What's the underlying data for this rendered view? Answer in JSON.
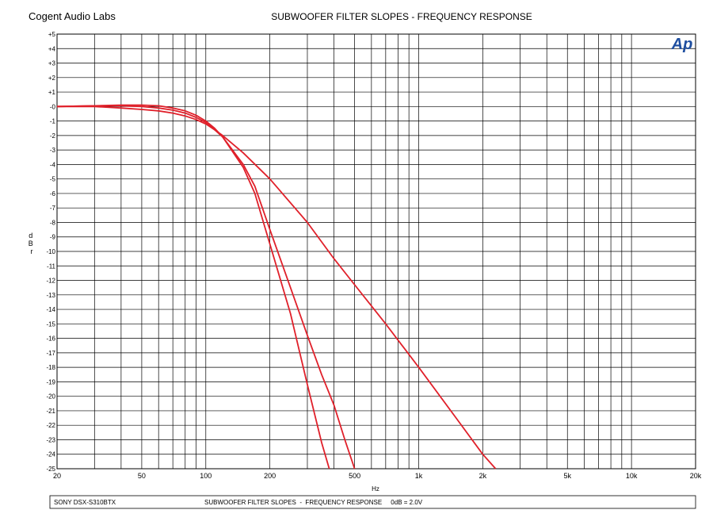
{
  "header": {
    "company": "Cogent Audio Labs",
    "title": "SUBWOOFER FILTER SLOPES - FREQUENCY RESPONSE"
  },
  "footer": {
    "device": "SONY DSX-S310BTX",
    "caption": "SUBWOOFER FILTER SLOPES  -  FREQUENCY RESPONSE     0dB = 2.0V"
  },
  "logo": {
    "text": "Ap",
    "color": "#1f4fa0"
  },
  "colors": {
    "trace": "#e0202a",
    "grid": "#000000"
  },
  "chart_data": {
    "type": "line",
    "title": "SUBWOOFER FILTER SLOPES - FREQUENCY RESPONSE",
    "xlabel": "Hz",
    "ylabel": "dBr",
    "xscale": "log",
    "xlim": [
      20,
      20000
    ],
    "ylim": [
      -25,
      5
    ],
    "grid": true,
    "x_ticks": [
      {
        "value": 20,
        "label": "20"
      },
      {
        "value": 50,
        "label": "50"
      },
      {
        "value": 100,
        "label": "100"
      },
      {
        "value": 200,
        "label": "200"
      },
      {
        "value": 500,
        "label": "500"
      },
      {
        "value": 1000,
        "label": "1k"
      },
      {
        "value": 2000,
        "label": "2k"
      },
      {
        "value": 5000,
        "label": "5k"
      },
      {
        "value": 10000,
        "label": "10k"
      },
      {
        "value": 20000,
        "label": "20k"
      }
    ],
    "y_ticks": [
      {
        "value": 5,
        "label": "+5"
      },
      {
        "value": 4,
        "label": "+4"
      },
      {
        "value": 3,
        "label": "+3"
      },
      {
        "value": 2,
        "label": "+2"
      },
      {
        "value": 1,
        "label": "+1"
      },
      {
        "value": 0,
        "label": "-0"
      },
      {
        "value": -1,
        "label": "-1"
      },
      {
        "value": -2,
        "label": "-2"
      },
      {
        "value": -3,
        "label": "-3"
      },
      {
        "value": -4,
        "label": "-4"
      },
      {
        "value": -5,
        "label": "-5"
      },
      {
        "value": -6,
        "label": "-6"
      },
      {
        "value": -7,
        "label": "-7"
      },
      {
        "value": -8,
        "label": "-8"
      },
      {
        "value": -9,
        "label": "-9"
      },
      {
        "value": -10,
        "label": "-10"
      },
      {
        "value": -11,
        "label": "-11"
      },
      {
        "value": -12,
        "label": "-12"
      },
      {
        "value": -13,
        "label": "-13"
      },
      {
        "value": -14,
        "label": "-14"
      },
      {
        "value": -15,
        "label": "-15"
      },
      {
        "value": -16,
        "label": "-16"
      },
      {
        "value": -17,
        "label": "-17"
      },
      {
        "value": -18,
        "label": "-18"
      },
      {
        "value": -19,
        "label": "-19"
      },
      {
        "value": -20,
        "label": "-20"
      },
      {
        "value": -21,
        "label": "-21"
      },
      {
        "value": -22,
        "label": "-22"
      },
      {
        "value": -23,
        "label": "-23"
      },
      {
        "value": -24,
        "label": "-24"
      },
      {
        "value": -25,
        "label": "-25"
      }
    ],
    "series": [
      {
        "x": [
          20,
          30,
          40,
          50,
          60,
          70,
          80,
          90,
          100,
          110,
          120,
          150,
          200,
          300,
          400,
          500,
          700,
          1000,
          1500,
          2000,
          2300
        ],
        "y": [
          0,
          0,
          -0.1,
          -0.2,
          -0.3,
          -0.45,
          -0.65,
          -0.9,
          -1.2,
          -1.6,
          -2.0,
          -3.2,
          -5.0,
          -8.0,
          -10.5,
          -12.3,
          -15.0,
          -18.0,
          -21.5,
          -24.0,
          -25.0
        ]
      },
      {
        "x": [
          20,
          30,
          40,
          50,
          60,
          70,
          80,
          90,
          100,
          110,
          120,
          150,
          170,
          200,
          250,
          300,
          350,
          400,
          450,
          500
        ],
        "y": [
          0,
          0.05,
          0.05,
          0,
          -0.1,
          -0.25,
          -0.45,
          -0.75,
          -1.1,
          -1.6,
          -2.1,
          -4.0,
          -5.5,
          -8.5,
          -12.5,
          -15.8,
          -18.5,
          -20.6,
          -23.0,
          -25.0
        ]
      },
      {
        "x": [
          20,
          30,
          40,
          50,
          60,
          70,
          80,
          90,
          100,
          110,
          120,
          150,
          170,
          200,
          250,
          300,
          350,
          380
        ],
        "y": [
          0,
          0.05,
          0.1,
          0.1,
          0.05,
          -0.1,
          -0.3,
          -0.6,
          -1.0,
          -1.5,
          -2.1,
          -4.2,
          -6.0,
          -9.5,
          -14.3,
          -19.2,
          -23.2,
          -25.0
        ]
      }
    ]
  }
}
